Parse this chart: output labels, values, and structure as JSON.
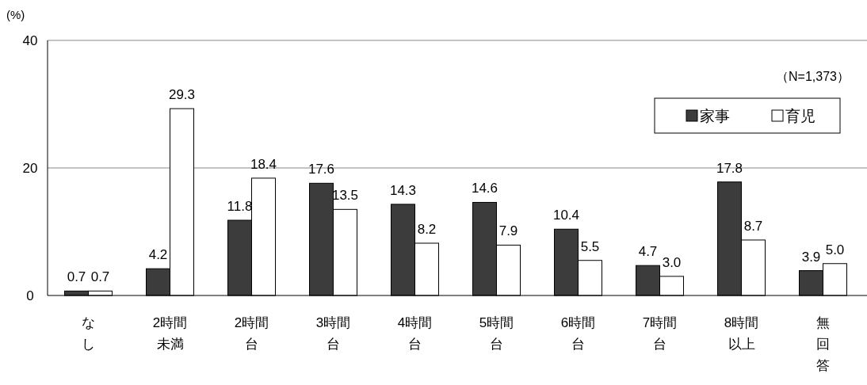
{
  "chart_data": {
    "type": "bar",
    "ylabel": "(%)",
    "annotations": [
      "（N=1,373）"
    ],
    "categories": [
      "なし",
      "2時間未満",
      "2時間台",
      "3時間台",
      "4時間台",
      "5時間台",
      "6時間台",
      "7時間台",
      "8時間以上",
      "無回答"
    ],
    "series": [
      {
        "name": "家事",
        "color": "#3c3c3c",
        "values": [
          0.7,
          4.2,
          11.8,
          17.6,
          14.3,
          14.6,
          10.4,
          4.7,
          17.8,
          3.9
        ],
        "value_labels": [
          "0.7",
          "4.2",
          "11.8",
          "17.6",
          "14.3",
          "14.6",
          "10.4",
          "4.7",
          "17.8",
          "3.9"
        ]
      },
      {
        "name": "育児",
        "color": "#ffffff",
        "values": [
          0.7,
          29.3,
          18.4,
          13.5,
          8.2,
          7.9,
          5.5,
          3.0,
          8.7,
          5.0
        ],
        "value_labels": [
          "0.7",
          "29.3",
          "18.4",
          "13.5",
          "8.2",
          "7.9",
          "5.5",
          "3.0",
          "8.7",
          "5.0"
        ]
      }
    ],
    "ylim": [
      0,
      40
    ],
    "yticks": [
      0,
      20,
      40
    ],
    "grid": "y",
    "legend": "top right"
  }
}
